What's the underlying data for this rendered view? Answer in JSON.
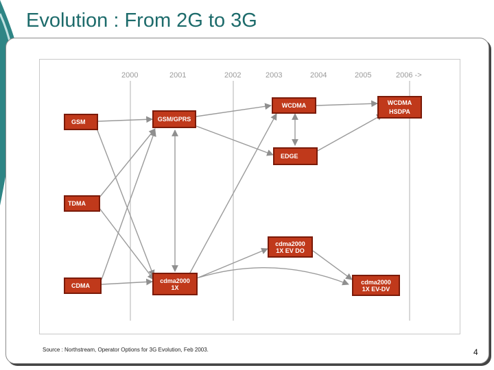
{
  "slide": {
    "title": "Evolution : From 2G to 3G",
    "source": "Source : Northstream, Operator Options for 3G Evolution, Feb 2003.",
    "page_number": "4"
  },
  "diagram": {
    "years": [
      "2000",
      "2001",
      "2002",
      "2003",
      "2004",
      "2005",
      "2006 ->"
    ],
    "nodes": {
      "gsm": "GSM",
      "gsm_gprs": "GSM/GPRS",
      "wcdma": "WCDMA",
      "wcdma_hsdpa_1": "WCDMA",
      "wcdma_hsdpa_2": "HSDPA",
      "edge": "EDGE",
      "tdma": "TDMA",
      "cdma2000_evdo_1": "cdma2000",
      "cdma2000_evdo_2": "1X EV DO",
      "cdma": "CDMA",
      "cdma2000_1x_1": "cdma2000",
      "cdma2000_1x_2": "1X",
      "cdma2000_evdv_1": "cdma2000",
      "cdma2000_evdv_2": "1X EV-DV"
    },
    "colors": {
      "node_fill": "#c0391b",
      "node_border": "#7a1a08",
      "arrow": "#9a9a9a",
      "title": "#1d6b6b",
      "accent_teal": "#2e8585"
    }
  }
}
